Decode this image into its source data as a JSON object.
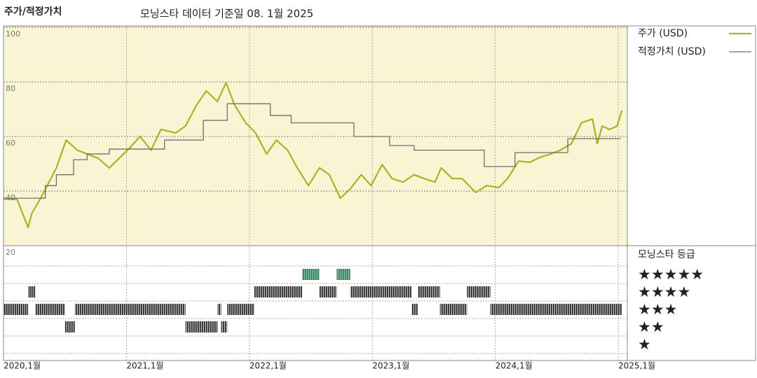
{
  "chart_data": {
    "type": "line",
    "title": "주가/적정가치",
    "subtitle": "모닝스타 데이터 기준일 08. 1월 2025",
    "xlim": [
      2020,
      2025.074
    ],
    "xticks": [
      {
        "value": 2020,
        "label": "2020,1월"
      },
      {
        "value": 2021,
        "label": "2021,1월"
      },
      {
        "value": 2022,
        "label": "2022,1월"
      },
      {
        "value": 2023,
        "label": "2023,1월"
      },
      {
        "value": 2024,
        "label": "2024,1월"
      },
      {
        "value": 2025,
        "label": "2025,1월"
      }
    ],
    "ylim": [
      20,
      100.5
    ],
    "yticks": [
      20,
      40,
      60,
      80,
      100
    ],
    "grid": true,
    "series": [
      {
        "name": "주가 (USD)",
        "color": "#a9b520",
        "x": [
          2020.0,
          2020.11,
          2020.2,
          2020.23,
          2020.31,
          2020.43,
          2020.51,
          2020.6,
          2020.68,
          2020.77,
          2020.86,
          2020.94,
          2021.03,
          2021.11,
          2021.2,
          2021.28,
          2021.4,
          2021.48,
          2021.57,
          2021.65,
          2021.74,
          2021.81,
          2021.88,
          2021.97,
          2022.05,
          2022.14,
          2022.22,
          2022.31,
          2022.39,
          2022.48,
          2022.57,
          2022.65,
          2022.74,
          2022.82,
          2022.91,
          2022.99,
          2023.08,
          2023.16,
          2023.25,
          2023.34,
          2023.42,
          2023.51,
          2023.56,
          2023.65,
          2023.73,
          2023.84,
          2023.93,
          2024.03,
          2024.1,
          2024.19,
          2024.28,
          2024.36,
          2024.45,
          2024.53,
          2024.62,
          2024.7,
          2024.79,
          2024.83,
          2024.87,
          2024.93,
          2024.99,
          2025.03
        ],
        "values": [
          37,
          37,
          26.7,
          31.8,
          38,
          48.5,
          58.7,
          55,
          53.6,
          52,
          48.5,
          52,
          56,
          60,
          55,
          62.6,
          61.3,
          63.8,
          71.5,
          76.7,
          72.8,
          79.7,
          71.5,
          65,
          61.3,
          53.6,
          58.7,
          55,
          48.5,
          42,
          48.5,
          46,
          37.4,
          40.8,
          46,
          42,
          49.7,
          44.6,
          43.3,
          46,
          44.6,
          43.3,
          48.5,
          44.6,
          44.6,
          39.5,
          42,
          41.3,
          44.6,
          51,
          50.5,
          52.3,
          53.6,
          55,
          57.4,
          65,
          66.4,
          57.4,
          63.8,
          62.6,
          63.8,
          69.5
        ]
      },
      {
        "name": "적정가치 (USD)",
        "color": "#6e6e6e",
        "step": true,
        "x": [
          2020.0,
          2020.34,
          2020.43,
          2020.57,
          2020.68,
          2020.86,
          2021.31,
          2021.625,
          2021.82,
          2022.17,
          2022.34,
          2022.85,
          2023.14,
          2023.34,
          2023.91,
          2024.16,
          2024.59,
          2025.02
        ],
        "values": [
          37.4,
          42,
          46,
          51.5,
          53.6,
          55.4,
          58.7,
          65.9,
          72,
          67.7,
          65,
          60,
          56.7,
          55,
          49,
          54.1,
          59.2,
          59.2
        ]
      }
    ],
    "rating_title": "모닝스타 등급",
    "rating_levels": [
      {
        "value": 5,
        "label": "★★★★★"
      },
      {
        "value": 4,
        "label": "★★★★"
      },
      {
        "value": 3,
        "label": "★★★"
      },
      {
        "value": 2,
        "label": "★★"
      },
      {
        "value": 1,
        "label": "★"
      }
    ],
    "ratings": [
      {
        "start": 2020.0,
        "end": 2020.2,
        "rating": 3
      },
      {
        "start": 2020.2,
        "end": 2020.26,
        "rating": 4
      },
      {
        "start": 2020.26,
        "end": 2020.5,
        "rating": 3
      },
      {
        "start": 2020.5,
        "end": 2020.58,
        "rating": 2
      },
      {
        "start": 2020.58,
        "end": 2021.48,
        "rating": 3
      },
      {
        "start": 2021.48,
        "end": 2021.74,
        "rating": 2
      },
      {
        "start": 2021.74,
        "end": 2021.77,
        "rating": 3
      },
      {
        "start": 2021.77,
        "end": 2021.82,
        "rating": 2
      },
      {
        "start": 2021.82,
        "end": 2022.04,
        "rating": 3
      },
      {
        "start": 2022.04,
        "end": 2022.43,
        "rating": 4
      },
      {
        "start": 2022.43,
        "end": 2022.57,
        "rating": 5
      },
      {
        "start": 2022.57,
        "end": 2022.71,
        "rating": 4
      },
      {
        "start": 2022.71,
        "end": 2022.82,
        "rating": 5
      },
      {
        "start": 2022.82,
        "end": 2023.32,
        "rating": 4
      },
      {
        "start": 2023.32,
        "end": 2023.37,
        "rating": 3
      },
      {
        "start": 2023.37,
        "end": 2023.55,
        "rating": 4
      },
      {
        "start": 2023.55,
        "end": 2023.77,
        "rating": 3
      },
      {
        "start": 2023.77,
        "end": 2023.96,
        "rating": 4
      },
      {
        "start": 2023.96,
        "end": 2025.03,
        "rating": 3
      }
    ]
  }
}
